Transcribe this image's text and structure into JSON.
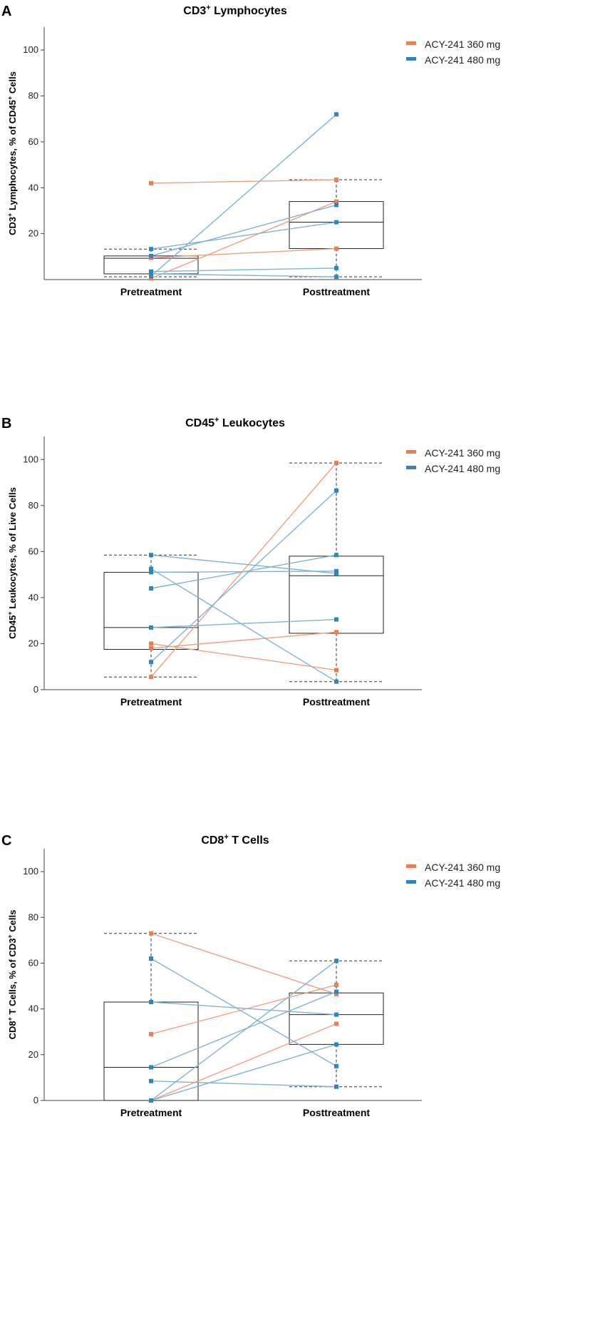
{
  "chart_data": [
    {
      "panel": "A",
      "type": "box",
      "title_main": "CD3",
      "title_sup": "+",
      "title_rest": " Lymphocytes",
      "title": "CD3+ Lymphocytes",
      "ylabel": "CD3+ Lymphocytes,  % of CD45+ Cells",
      "ylabel_parts": [
        {
          "t": "CD3"
        },
        {
          "t": "+",
          "sup": true
        },
        {
          "t": " Lymphocytes,  % of CD45"
        },
        {
          "t": "+",
          "sup": true
        },
        {
          "t": " Cells"
        }
      ],
      "categories": [
        "Pretreatment",
        "Posttreatment"
      ],
      "ylim": [
        0,
        110
      ],
      "yticks": [
        20,
        40,
        60,
        80,
        100
      ],
      "legend": [
        {
          "label": "ACY-241 360 mg",
          "color": "#ED7D4E"
        },
        {
          "label": "ACY-241 480 mg",
          "color": "#2E86C1"
        }
      ],
      "boxes": [
        {
          "whisker_low": 1.2,
          "q1": 2.5,
          "median": 9.3,
          "q3": 10.3,
          "whisker_high": 13.3
        },
        {
          "whisker_low": 1.2,
          "q1": 13.5,
          "median": 25,
          "q3": 34,
          "whisker_high": 43.5
        }
      ],
      "series": [
        {
          "group": "ACY-241 360 mg",
          "values": [
            42,
            43.5
          ]
        },
        {
          "group": "ACY-241 360 mg",
          "values": [
            0.5,
            34
          ]
        },
        {
          "group": "ACY-241 360 mg",
          "values": [
            9.5,
            13.5
          ]
        },
        {
          "group": "ACY-241 480 mg",
          "values": [
            1.5,
            72
          ]
        },
        {
          "group": "ACY-241 480 mg",
          "values": [
            13.3,
            25
          ]
        },
        {
          "group": "ACY-241 480 mg",
          "values": [
            10.3,
            32.5
          ]
        },
        {
          "group": "ACY-241 480 mg",
          "values": [
            3.5,
            5
          ]
        },
        {
          "group": "ACY-241 480 mg",
          "values": [
            2.5,
            1.2
          ]
        }
      ]
    },
    {
      "panel": "B",
      "type": "box",
      "title_main": "CD45",
      "title_sup": "+",
      "title_rest": " Leukocytes",
      "title": "CD45+ Leukocytes",
      "ylabel": "CD45+ Leukocytes, % of Live Cells",
      "ylabel_parts": [
        {
          "t": "CD45"
        },
        {
          "t": "+",
          "sup": true
        },
        {
          "t": " Leukocytes, % of Live Cells"
        }
      ],
      "categories": [
        "Pretreatment",
        "Posttreatment"
      ],
      "ylim": [
        0,
        110
      ],
      "yticks": [
        0,
        20,
        40,
        60,
        80,
        100
      ],
      "legend": [
        {
          "label": "ACY-241 360 mg",
          "color": "#ED7D4E"
        },
        {
          "label": "ACY-241 480 mg",
          "color": "#2E86C1"
        }
      ],
      "boxes": [
        {
          "whisker_low": 5.5,
          "q1": 17.5,
          "median": 27,
          "q3": 51,
          "whisker_high": 58.5
        },
        {
          "whisker_low": 3.5,
          "q1": 24.5,
          "median": 49.5,
          "q3": 58,
          "whisker_high": 98.5
        }
      ],
      "series": [
        {
          "group": "ACY-241 360 mg",
          "values": [
            5.5,
            98.5
          ]
        },
        {
          "group": "ACY-241 360 mg",
          "values": [
            20,
            8.5
          ]
        },
        {
          "group": "ACY-241 360 mg",
          "values": [
            18,
            25
          ]
        },
        {
          "group": "ACY-241 480 mg",
          "values": [
            58.5,
            50.5
          ]
        },
        {
          "group": "ACY-241 480 mg",
          "values": [
            51,
            51.5
          ]
        },
        {
          "group": "ACY-241 480 mg",
          "values": [
            44,
            58.5
          ]
        },
        {
          "group": "ACY-241 480 mg",
          "values": [
            52.5,
            3.5
          ]
        },
        {
          "group": "ACY-241 480 mg",
          "values": [
            27,
            30.5
          ]
        },
        {
          "group": "ACY-241 480 mg",
          "values": [
            12,
            86.5
          ]
        }
      ]
    },
    {
      "panel": "C",
      "type": "box",
      "title_main": "CD8",
      "title_sup": "+",
      "title_rest": " T Cells",
      "title": "CD8+ T Cells",
      "ylabel": "CD8+ T Cells, % of CD3+ Cells",
      "ylabel_parts": [
        {
          "t": "CD8"
        },
        {
          "t": "+",
          "sup": true
        },
        {
          "t": " T Cells, % of CD3"
        },
        {
          "t": "+",
          "sup": true
        },
        {
          "t": " Cells"
        }
      ],
      "categories": [
        "Pretreatment",
        "Posttreatment"
      ],
      "ylim": [
        0,
        110
      ],
      "yticks": [
        0,
        20,
        40,
        60,
        80,
        100
      ],
      "legend": [
        {
          "label": "ACY-241 360 mg",
          "color": "#ED7D4E"
        },
        {
          "label": "ACY-241 480 mg",
          "color": "#2E86C1"
        }
      ],
      "boxes": [
        {
          "whisker_low": 0,
          "q1": 0,
          "median": 14.5,
          "q3": 43,
          "whisker_high": 73
        },
        {
          "whisker_low": 6,
          "q1": 24.5,
          "median": 37.5,
          "q3": 47,
          "whisker_high": 61
        }
      ],
      "series": [
        {
          "group": "ACY-241 360 mg",
          "values": [
            73,
            46.5
          ]
        },
        {
          "group": "ACY-241 360 mg",
          "values": [
            29,
            50.5
          ]
        },
        {
          "group": "ACY-241 360 mg",
          "values": [
            0,
            33.5
          ]
        },
        {
          "group": "ACY-241 480 mg",
          "values": [
            62,
            15
          ]
        },
        {
          "group": "ACY-241 480 mg",
          "values": [
            43,
            37.5
          ]
        },
        {
          "group": "ACY-241 480 mg",
          "values": [
            14.5,
            47.5
          ]
        },
        {
          "group": "ACY-241 480 mg",
          "values": [
            8.5,
            6
          ]
        },
        {
          "group": "ACY-241 480 mg",
          "values": [
            0,
            61
          ]
        },
        {
          "group": "ACY-241 480 mg",
          "values": [
            0,
            24.5
          ]
        }
      ]
    }
  ]
}
